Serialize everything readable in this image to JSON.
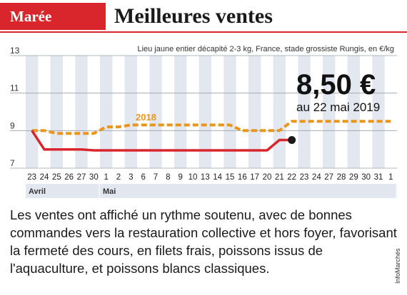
{
  "header": {
    "category": "Marée",
    "title": "Meilleures ventes"
  },
  "description": "Les ventes ont affiché un rythme soutenu, avec de bonnes commandes vers la restauration collective et hors foyer, favorisant la fermeté des cours, en filets frais, poissons issus de l'aquaculture, et poissons blancs classiques.",
  "credit": "InfoMarchés",
  "colors": {
    "accent": "#d8262c",
    "current_series": "#d8262c",
    "previous_series": "#e8961e",
    "marker": "#1a1a1a",
    "stripe": "#e3e7ef"
  },
  "chart_data": {
    "type": "line",
    "subtitle": "Lieu jaune entier décapité 2-3 kg, France, stade grossiste Rungis, en €/kg",
    "ylim": [
      7,
      13
    ],
    "y_ticks": [
      "7",
      "9",
      "11",
      "13"
    ],
    "x_ticks": [
      "23",
      "24",
      "25",
      "26",
      "27",
      "30",
      "1",
      "2",
      "3",
      "6",
      "7",
      "8",
      "9",
      "10",
      "13",
      "14",
      "15",
      "16",
      "17",
      "20",
      "21",
      "22",
      "23",
      "24",
      "27",
      "28",
      "29",
      "30",
      "31",
      "1"
    ],
    "months": [
      {
        "label": "Avril",
        "start_index": 0
      },
      {
        "label": "Mai",
        "start_index": 6
      }
    ],
    "series": [
      {
        "name": "",
        "style": "solid",
        "values": [
          9.0,
          8.0,
          8.0,
          8.0,
          8.0,
          7.95,
          7.95,
          7.95,
          7.95,
          7.95,
          7.95,
          7.95,
          7.95,
          7.95,
          7.95,
          7.95,
          7.95,
          7.95,
          7.95,
          7.95,
          8.5,
          8.5
        ]
      },
      {
        "name": "2018",
        "style": "dashed",
        "values": [
          9.0,
          9.0,
          8.85,
          8.85,
          8.85,
          8.85,
          9.2,
          9.2,
          9.3,
          9.3,
          9.3,
          9.3,
          9.3,
          9.3,
          9.3,
          9.3,
          9.3,
          9.0,
          9.0,
          9.0,
          9.0,
          9.5,
          9.5,
          9.5,
          9.5,
          9.5,
          9.5,
          9.5,
          9.5,
          9.5
        ]
      }
    ],
    "series_label": "2018",
    "annotation": {
      "value": "8,50 €",
      "date": "au 22 mai 2019"
    }
  }
}
